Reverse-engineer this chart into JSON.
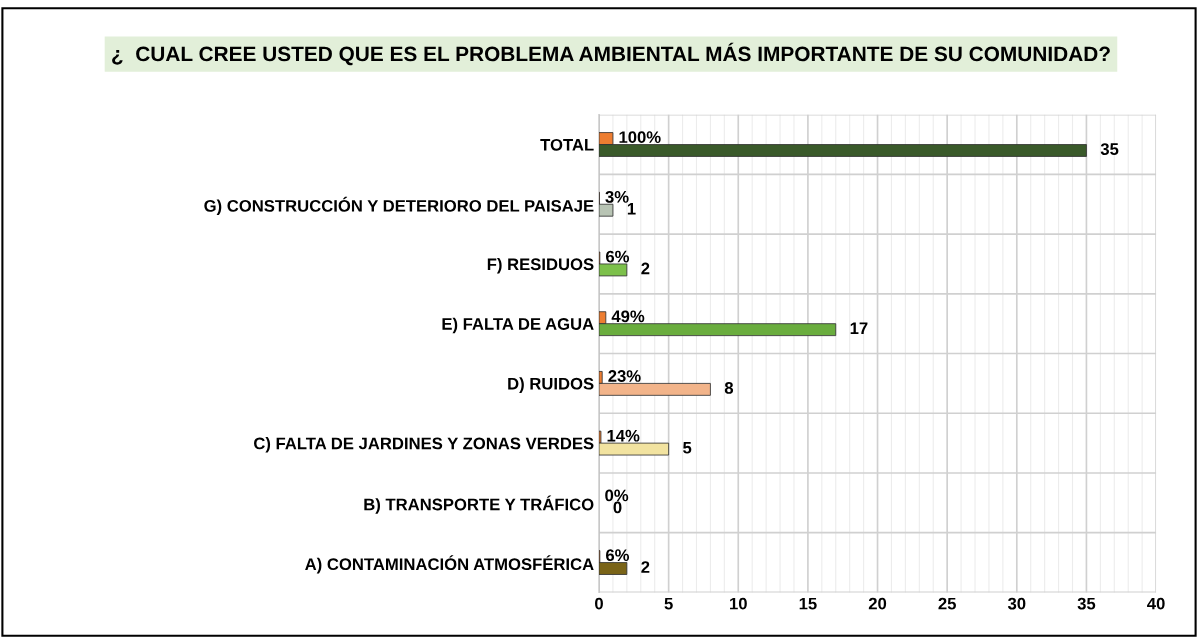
{
  "chart_data": {
    "type": "bar",
    "orientation": "horizontal",
    "title": "¿  CUAL CREE USTED QUE ES EL PROBLEMA AMBIENTAL MÁS IMPORTANTE DE SU COMUNIDAD?",
    "categories": [
      "TOTAL",
      "G) CONSTRUCCIÓN Y DETERIORO DEL PAISAJE",
      "F) RESIDUOS",
      "E) FALTA DE AGUA",
      "D) RUIDOS",
      "C) FALTA DE JARDINES Y ZONAS VERDES",
      "B) TRANSPORTE Y TRÁFICO",
      "A) CONTAMINACIÓN ATMOSFÉRICA"
    ],
    "series": [
      {
        "color": "#ed7d31",
        "values": [
          1,
          0.03,
          0.06,
          0.49,
          0.23,
          0.14,
          0,
          0.06
        ],
        "value_labels": [
          "100%",
          "3%",
          "6%",
          "49%",
          "23%",
          "14%",
          "0%",
          "6%"
        ]
      },
      {
        "colors": [
          "#3a5a2a",
          "#b8c4b4",
          "#7cc04a",
          "#6aad3e",
          "#f2b48a",
          "#f2e3a0",
          "#9aa040",
          "#7a6418"
        ],
        "values": [
          35,
          1,
          2,
          17,
          8,
          5,
          0,
          2
        ],
        "value_labels": [
          "35",
          "1",
          "2",
          "17",
          "8",
          "5",
          "0",
          "2"
        ]
      }
    ],
    "xlim": [
      0,
      40
    ],
    "xticks": [
      0,
      {
        "value": 1,
        "label": null
      },
      {
        "value": 2,
        "label": null
      },
      {
        "value": 3,
        "label": null
      },
      {
        "value": 4,
        "label": null
      },
      5,
      {
        "value": 6,
        "label": null
      },
      {
        "value": 7,
        "label": null
      },
      {
        "value": 8,
        "label": null
      },
      {
        "value": 9,
        "label": null
      },
      10,
      {
        "value": 11,
        "label": null
      },
      {
        "value": 12,
        "label": null
      },
      {
        "value": 13,
        "label": null
      },
      {
        "value": 14,
        "label": null
      },
      15,
      {
        "value": 16,
        "label": null
      },
      {
        "value": 17,
        "label": null
      },
      {
        "value": 18,
        "label": null
      },
      {
        "value": 19,
        "label": null
      },
      20,
      {
        "value": 21,
        "label": null
      },
      {
        "value": 22,
        "label": null
      },
      {
        "value": 23,
        "label": null
      },
      {
        "value": 24,
        "label": null
      },
      25,
      {
        "value": 26,
        "label": null
      },
      {
        "value": 27,
        "label": null
      },
      {
        "value": 28,
        "label": null
      },
      {
        "value": 29,
        "label": null
      },
      30,
      {
        "value": 31,
        "label": null
      },
      {
        "value": 32,
        "label": null
      },
      {
        "value": 33,
        "label": null
      },
      {
        "value": 34,
        "label": null
      },
      35,
      {
        "value": 36,
        "label": null
      },
      {
        "value": 37,
        "label": null
      },
      {
        "value": 38,
        "label": null
      },
      {
        "value": 39,
        "label": null
      },
      40
    ],
    "grid": true,
    "legend": false
  }
}
